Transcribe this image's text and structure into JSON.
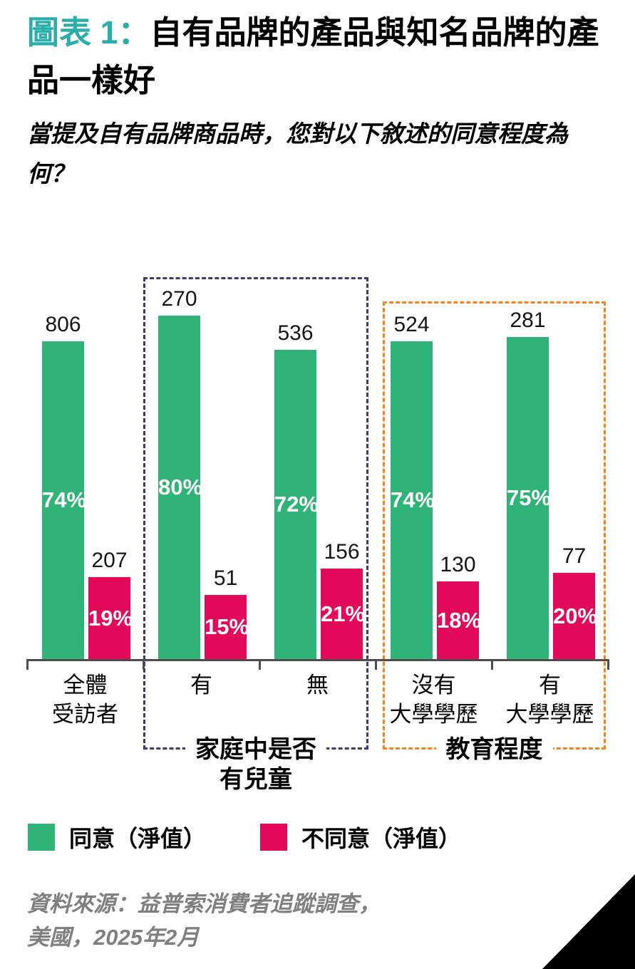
{
  "figure": {
    "title_prefix": "圖表 1：",
    "title": "自有品牌的產品與知名品牌的產品一樣好",
    "subtitle": "當提及自有品牌商品時，您對以下敘述的同意程度為何？"
  },
  "chart_data": {
    "type": "bar",
    "title": "圖表 1： 自有品牌的產品與知名品牌的產品一樣好",
    "subtitle": "當提及自有品牌商品時，您對以下敘述的同意程度為何？",
    "categories": [
      [
        "全體",
        "受訪者"
      ],
      [
        "有"
      ],
      [
        "無"
      ],
      [
        "沒有",
        "大學學歷"
      ],
      [
        "有",
        "大學學歷"
      ]
    ],
    "series": [
      {
        "name": "同意（淨值）",
        "color": "#2FB376",
        "percents": [
          74,
          80,
          72,
          74,
          75
        ],
        "counts": [
          806,
          270,
          536,
          524,
          281
        ]
      },
      {
        "name": "不同意（淨值）",
        "color": "#E2095B",
        "percents": [
          19,
          15,
          21,
          18,
          20
        ],
        "counts": [
          207,
          51,
          156,
          130,
          77
        ]
      }
    ],
    "bar_label_above": "counts",
    "bar_label_inside": "percents",
    "brackets": [
      {
        "label_lines": [
          "家庭中是否",
          "有兒童"
        ],
        "color": "#473671",
        "start_group": 1,
        "end_group": 2
      },
      {
        "label_lines": [
          "教育程度"
        ],
        "color": "#F5821F",
        "start_group": 3,
        "end_group": 4
      }
    ],
    "ylim": [
      0,
      100
    ],
    "grid": false,
    "legend_position": "bottom"
  },
  "legend": {
    "items": [
      {
        "label": "同意（淨值）",
        "color": "#2FB376"
      },
      {
        "label": "不同意（淨值）",
        "color": "#E2095B"
      }
    ]
  },
  "source": {
    "lines": [
      "資料來源：益普索消費者追蹤調查，",
      "美國，2025年2月"
    ]
  },
  "colors": {
    "accent_teal": "#29AEAB",
    "agree_green": "#2FB376",
    "disagree_pink": "#E2095B",
    "bracket_purple": "#473671",
    "bracket_orange": "#F5821F",
    "axis_gray": "#4D4D4D",
    "source_gray": "#7F7F7F"
  }
}
